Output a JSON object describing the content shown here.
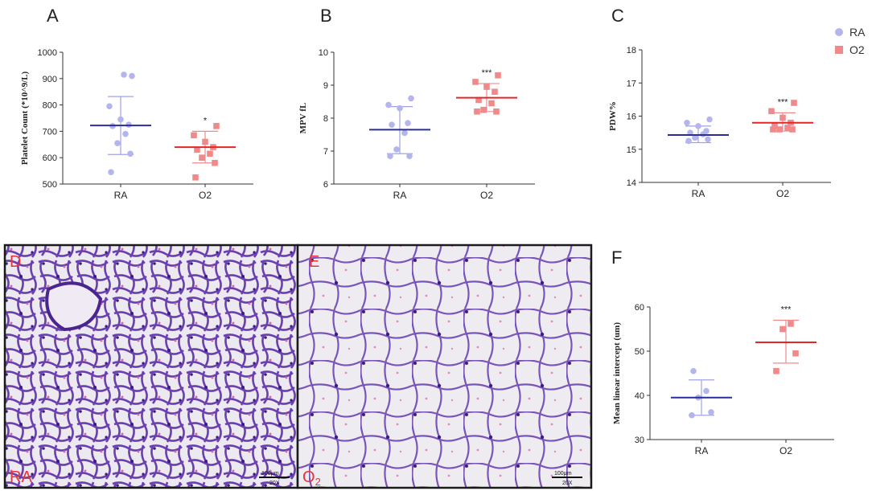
{
  "colors": {
    "ra_point": "#b3b5ec",
    "ra_mean": "#2b2d9a",
    "ra_err": "#9fa2e6",
    "o2_point": "#f08a8a",
    "o2_mean": "#e32626",
    "o2_err": "#f08a8a",
    "axis": "#333333",
    "micro_label": "#e8323c",
    "micro_border": "#1a1a1a"
  },
  "legend": {
    "ra": "RA",
    "o2": "O2",
    "ra_marker": "circle",
    "o2_marker": "square"
  },
  "chart_data": [
    {
      "panel": "A",
      "type": "scatter",
      "ylabel": "Platelet Count (*10^9/L)",
      "ylim": [
        500,
        1000
      ],
      "yticks": [
        500,
        600,
        700,
        800,
        900,
        1000
      ],
      "categories": [
        "RA",
        "O2"
      ],
      "significance": "*",
      "series": [
        {
          "name": "RA",
          "values": [
            545,
            615,
            655,
            690,
            720,
            725,
            745,
            795,
            910,
            915
          ],
          "mean": 722,
          "err_low": 612,
          "err_high": 832
        },
        {
          "name": "O2",
          "values": [
            525,
            580,
            600,
            615,
            630,
            640,
            660,
            685,
            720
          ],
          "mean": 640,
          "err_low": 580,
          "err_high": 700
        }
      ]
    },
    {
      "panel": "B",
      "type": "scatter",
      "ylabel": "MPV fL",
      "ylim": [
        6,
        10
      ],
      "yticks": [
        6,
        7,
        8,
        9,
        10
      ],
      "categories": [
        "RA",
        "O2"
      ],
      "significance": "***",
      "series": [
        {
          "name": "RA",
          "values": [
            6.85,
            6.85,
            7.05,
            7.55,
            7.8,
            7.85,
            8.3,
            8.4,
            8.6
          ],
          "mean": 7.65,
          "err_low": 6.92,
          "err_high": 8.35
        },
        {
          "name": "O2",
          "values": [
            8.2,
            8.2,
            8.25,
            8.45,
            8.55,
            8.8,
            8.95,
            9.1,
            9.3
          ],
          "mean": 8.62,
          "err_low": 8.2,
          "err_high": 9.05
        }
      ]
    },
    {
      "panel": "C",
      "type": "scatter",
      "ylabel": "PDW%",
      "ylim": [
        14,
        18
      ],
      "yticks": [
        14,
        15,
        16,
        17,
        18
      ],
      "categories": [
        "RA",
        "O2"
      ],
      "significance": "***",
      "series": [
        {
          "name": "RA",
          "values": [
            15.25,
            15.3,
            15.35,
            15.45,
            15.5,
            15.55,
            15.7,
            15.8,
            15.9
          ],
          "mean": 15.43,
          "err_low": 15.2,
          "err_high": 15.7
        },
        {
          "name": "O2",
          "values": [
            15.6,
            15.6,
            15.6,
            15.65,
            15.7,
            15.8,
            15.95,
            16.15,
            16.4
          ],
          "mean": 15.8,
          "err_low": 15.55,
          "err_high": 16.1
        }
      ]
    },
    {
      "panel": "F",
      "type": "scatter",
      "ylabel": "Mean linear intercept (um)",
      "ylim": [
        30,
        60
      ],
      "yticks": [
        30,
        40,
        50,
        60
      ],
      "categories": [
        "RA",
        "O2"
      ],
      "significance": "***",
      "series": [
        {
          "name": "RA",
          "values": [
            35.5,
            36.2,
            39.5,
            41.0,
            45.5
          ],
          "mean": 39.5,
          "err_low": 35.5,
          "err_high": 43.5
        },
        {
          "name": "O2",
          "values": [
            45.5,
            49.5,
            55.0,
            56.2
          ],
          "mean": 52.0,
          "err_low": 47.3,
          "err_high": 57.0
        }
      ]
    }
  ],
  "micrographs": [
    {
      "panel": "D",
      "letter": "D",
      "condition": "RA",
      "scale": "100μm",
      "magnification": "20X"
    },
    {
      "panel": "E",
      "letter": "E",
      "condition": "O",
      "condition_sub": "2",
      "scale": "100μm",
      "magnification": "20X"
    }
  ]
}
